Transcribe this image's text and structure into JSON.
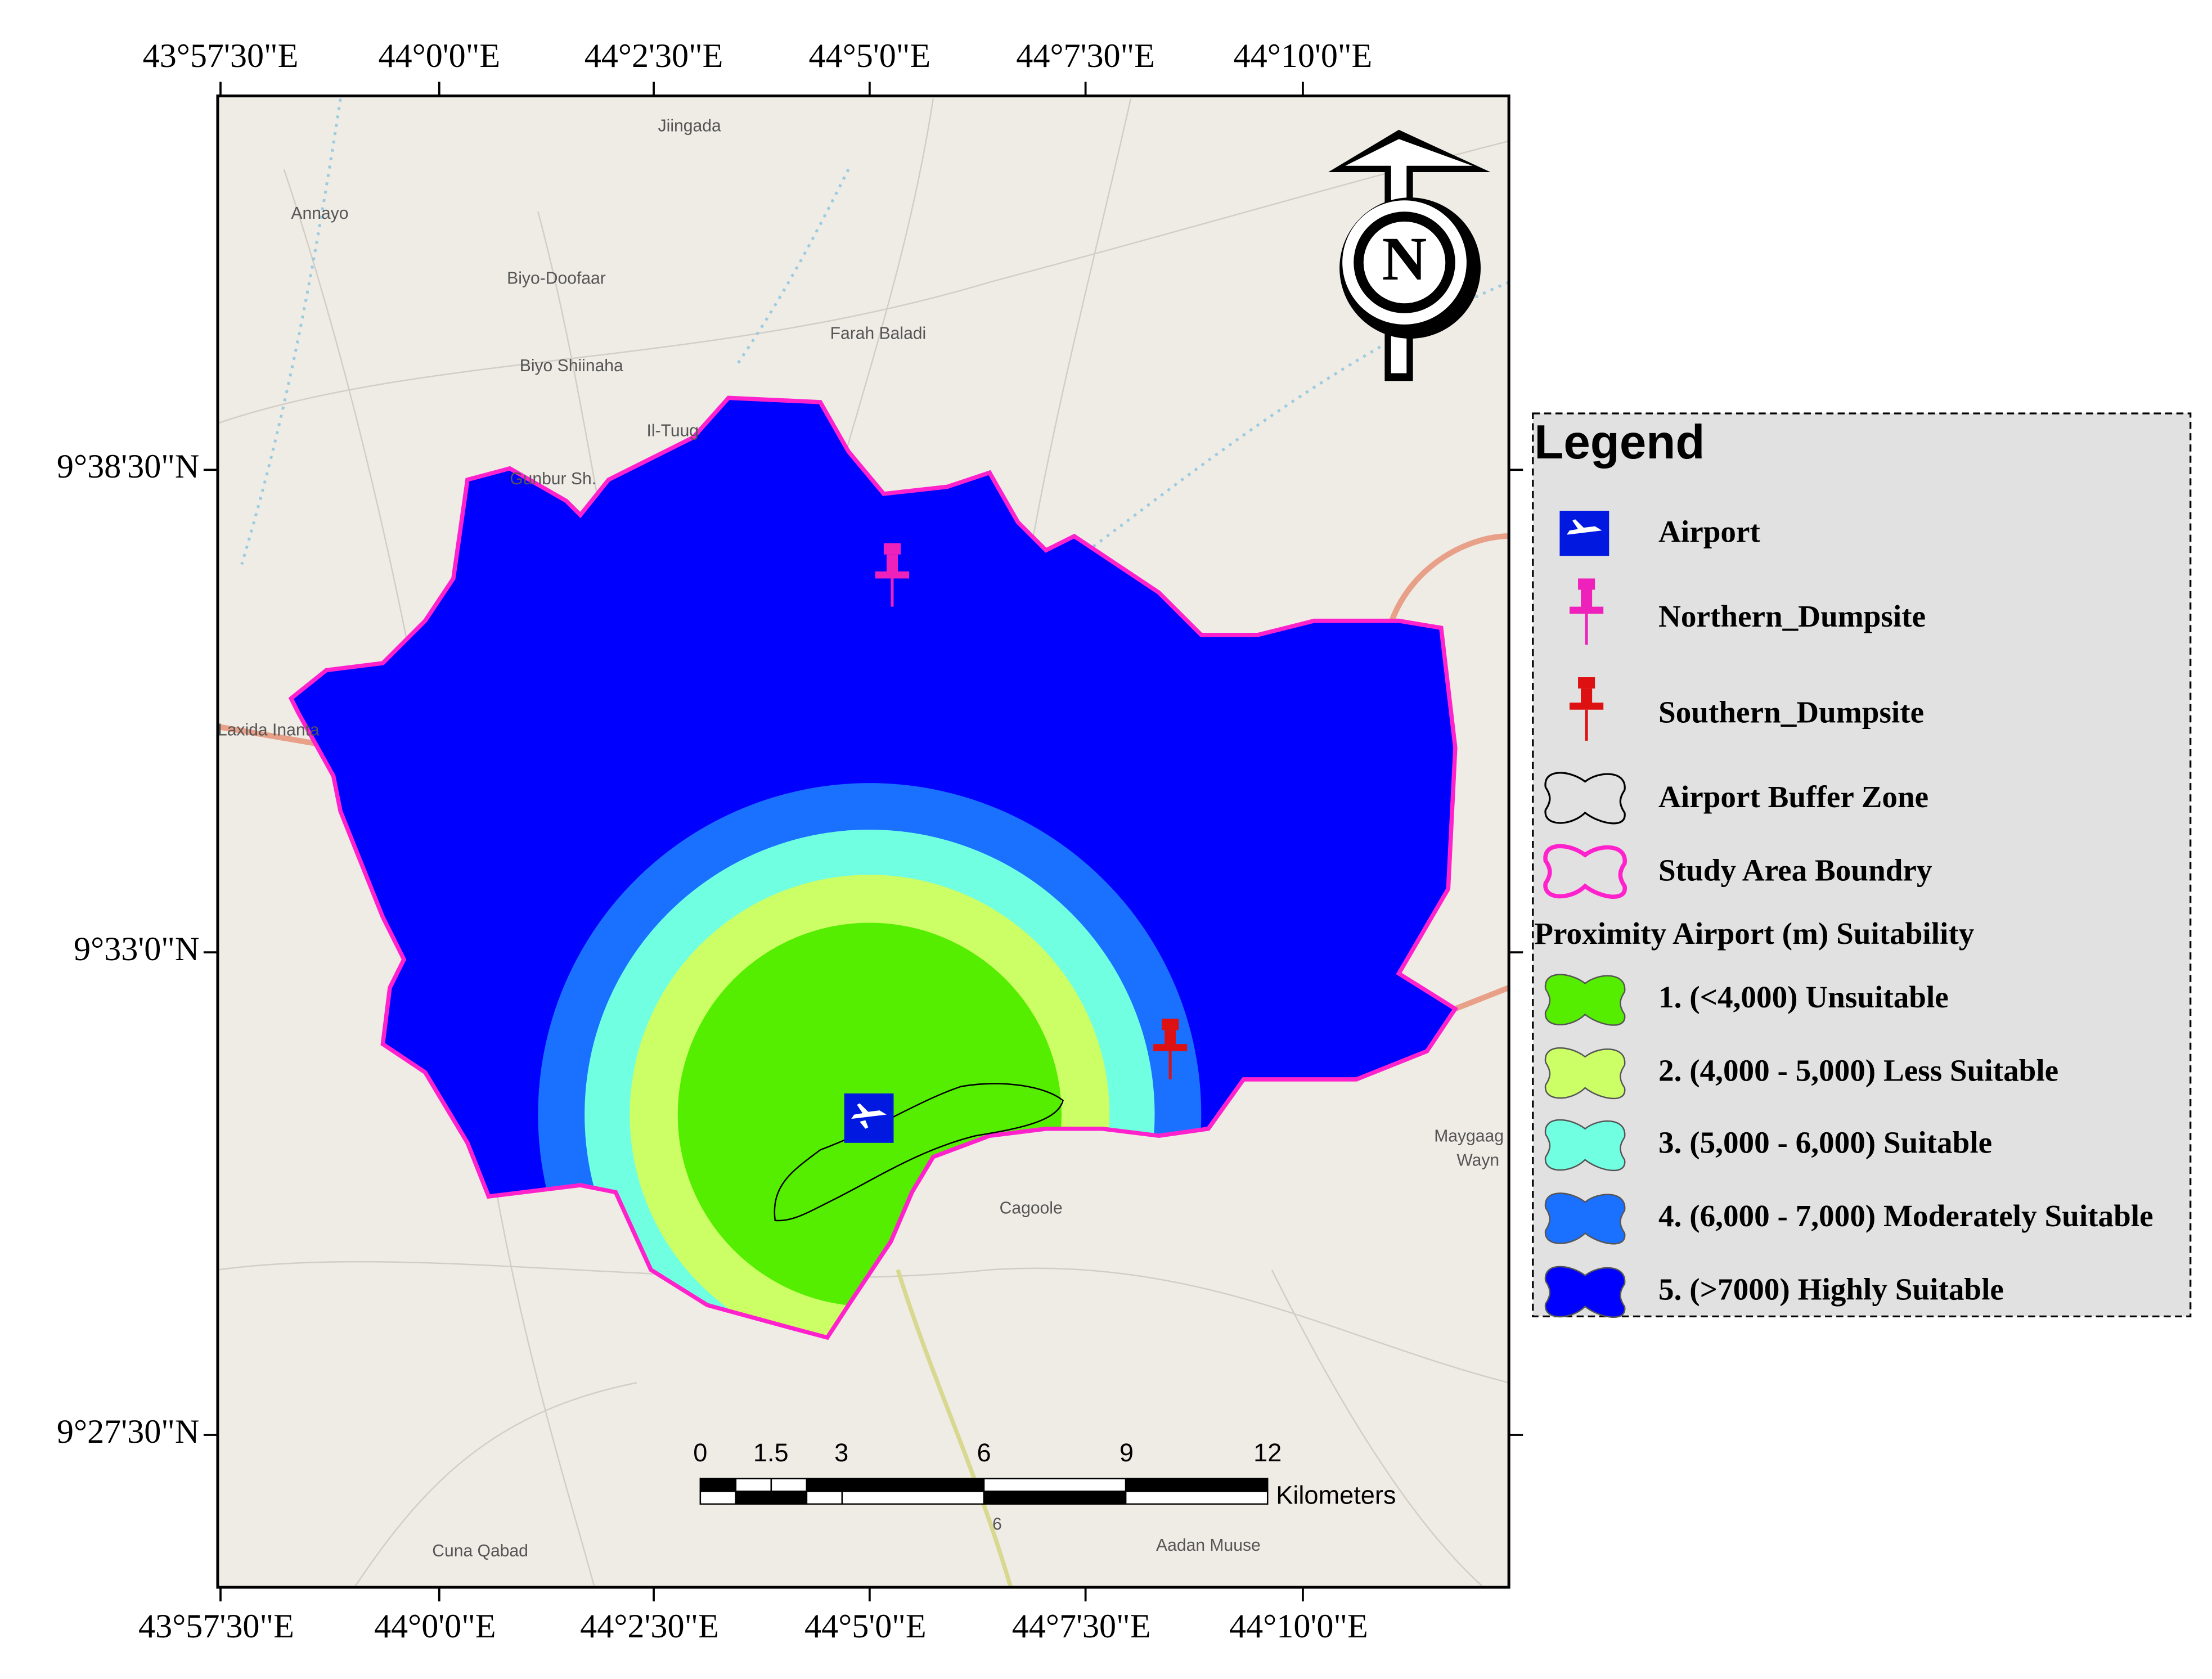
{
  "map": {
    "top_ticks": [
      "43°57'30\"E",
      "44°0'0\"E",
      "44°2'30\"E",
      "44°5'0\"E",
      "44°7'30\"E",
      "44°10'0\"E"
    ],
    "bottom_ticks": [
      "43°57'30\"E",
      "44°0'0\"E",
      "44°2'30\"E",
      "44°5'0\"E",
      "44°7'30\"E",
      "44°10'0\"E"
    ],
    "left_ticks": [
      "9°38'30\"N",
      "9°33'0\"N",
      "9°27'30\"N"
    ],
    "places": [
      "Jiingada",
      "Annayo",
      "Biyo-Doofaar",
      "Farah Baladi",
      "Biyo Shiinaha",
      "Il-Tuug",
      "Gunbur Sh.",
      "Laxida Inanta",
      "Cagoole",
      "Maygaag",
      "Wayn",
      "Cuna Qabad",
      "Aadan Muuse",
      "6"
    ],
    "north": "N",
    "scale_bar": {
      "labels": [
        "0",
        "1.5",
        "3",
        "6",
        "9",
        "12"
      ],
      "unit": "Kilometers"
    }
  },
  "legend": {
    "title": "Legend",
    "items": [
      "Airport",
      "Northern_Dumpsite",
      "Southern_Dumpsite",
      "Airport Buffer Zone",
      "Study Area Boundry"
    ],
    "section": "Proximity Airport (m) Suitability",
    "classes": [
      "1. (<4,000) Unsuitable",
      "2. (4,000 - 5,000) Less Suitable",
      "3. (5,000 - 6,000) Suitable",
      "4. (6,000 - 7,000) Moderately Suitable",
      "5. (>7000) Highly Suitable"
    ]
  }
}
